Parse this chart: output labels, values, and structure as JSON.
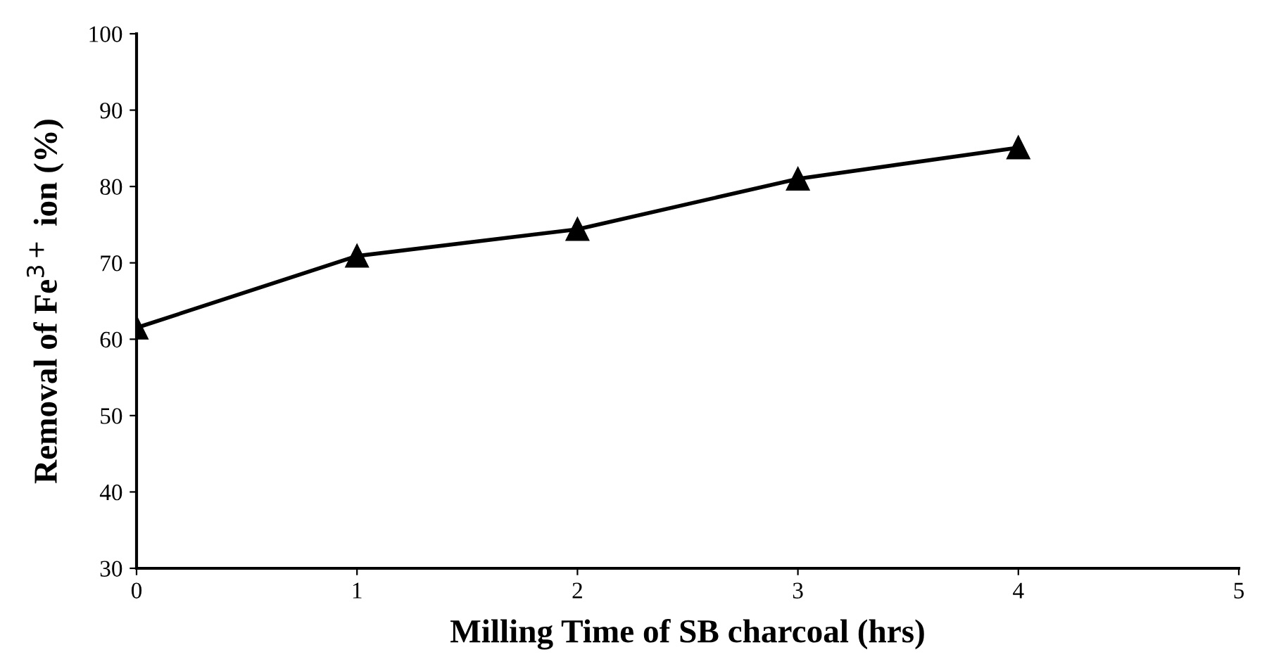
{
  "chart_data": {
    "type": "line",
    "xlabel": "Milling Time of SB charcoal (hrs)",
    "ylabel": "Removal of Fe$^{3+}$ ion (%)",
    "x": [
      0,
      1,
      2,
      3,
      4
    ],
    "series": [
      {
        "color": "#000000",
        "values": [
          61.5,
          70.9,
          74.4,
          81.0,
          85.1
        ]
      }
    ],
    "xlim": [
      0,
      5
    ],
    "xticks": [
      0,
      1,
      2,
      3,
      4,
      5
    ],
    "ylim": [
      30,
      100
    ],
    "yticks": [
      30,
      40,
      50,
      60,
      70,
      80,
      90,
      100
    ],
    "marker": "triangle",
    "line_style": "solid",
    "grid": false,
    "legend": false
  }
}
